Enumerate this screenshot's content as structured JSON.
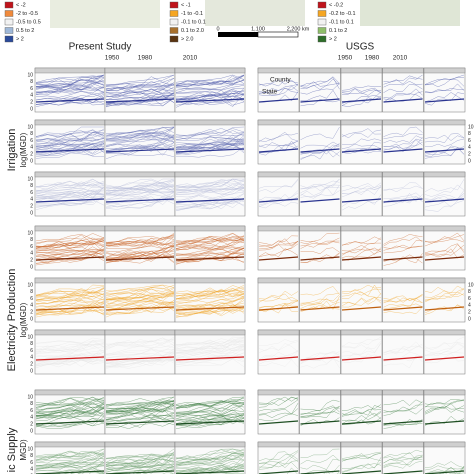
{
  "legends": [
    {
      "items": [
        "< -2",
        "-2 to -0.5",
        "-0.5 to 0.5",
        "0.5 to 2",
        "> 2"
      ]
    },
    {
      "items": [
        "< -1",
        "-1 to -0.1",
        "-0.1 to 0.1",
        "0.1 to 2.0",
        "> 2.0"
      ]
    },
    {
      "items": [
        "< -0.2",
        "-0.2 to -0.1",
        "-0.1 to 0.1",
        "0.1 to 2",
        "> 2"
      ]
    }
  ],
  "scale_bar": {
    "labels": [
      "0",
      "1,100",
      "2,200 km"
    ]
  },
  "headers": {
    "left": "Present Study",
    "right": "USGS"
  },
  "years": [
    "1950",
    "1980",
    "2010"
  ],
  "row_labels": [
    {
      "title": "Irrigation",
      "unit": "log(MGD)"
    },
    {
      "title": "Electricity Production",
      "unit": "log(MGD)"
    },
    {
      "title": "ic Supply",
      "unit": "MGD)"
    }
  ],
  "yticks": [
    0,
    2,
    4,
    6,
    8,
    10
  ],
  "annotations": {
    "state": "State",
    "county": "County"
  }
}
